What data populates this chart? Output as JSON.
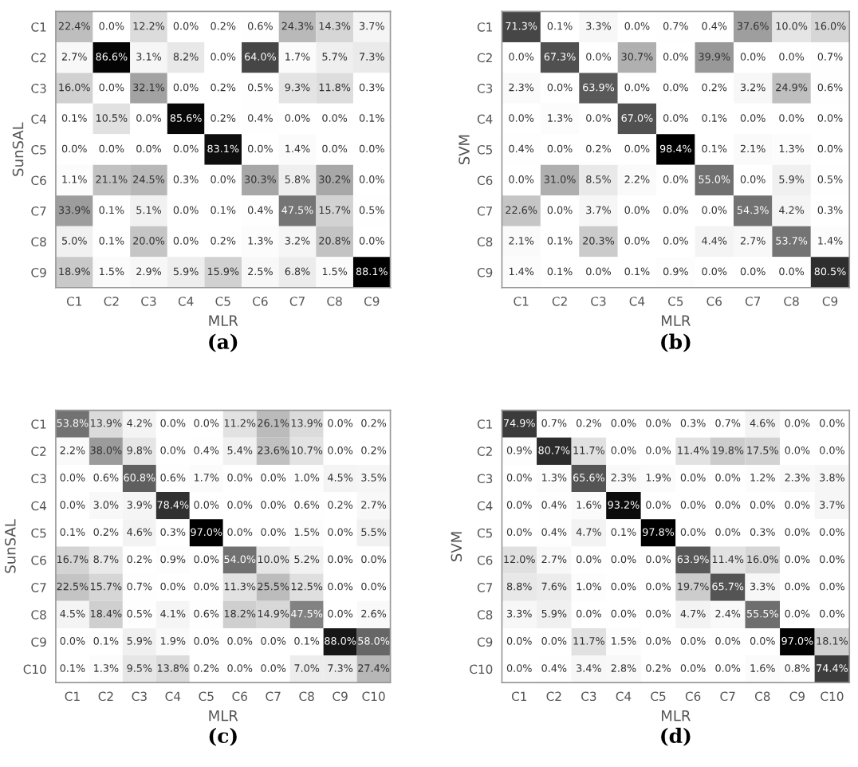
{
  "chart_data": [
    {
      "type": "heatmap",
      "title": "(a)",
      "xlabel": "MLR",
      "ylabel": "SunSAL",
      "categories": [
        "C1",
        "C2",
        "C3",
        "C4",
        "C5",
        "C6",
        "C7",
        "C8",
        "C9"
      ],
      "y_categories": [
        "C1",
        "C2",
        "C3",
        "C4",
        "C5",
        "C6",
        "C7",
        "C8",
        "C9"
      ],
      "cells": [
        [
          22.4,
          0.0,
          12.2,
          0.0,
          0.2,
          0.6,
          24.3,
          14.3,
          3.7
        ],
        [
          2.7,
          86.6,
          3.1,
          8.2,
          0.0,
          64.0,
          1.7,
          5.7,
          7.3
        ],
        [
          16.0,
          0.0,
          32.1,
          0.0,
          0.2,
          0.5,
          9.3,
          11.8,
          0.3
        ],
        [
          0.1,
          10.5,
          0.0,
          85.6,
          0.2,
          0.4,
          0.0,
          0.0,
          0.1
        ],
        [
          0.0,
          0.0,
          0.0,
          0.0,
          83.1,
          0.0,
          1.4,
          0.0,
          0.0
        ],
        [
          1.1,
          21.1,
          24.5,
          0.3,
          0.0,
          30.3,
          5.8,
          30.2,
          0.0
        ],
        [
          33.9,
          0.1,
          5.1,
          0.0,
          0.1,
          0.4,
          47.5,
          15.7,
          0.5
        ],
        [
          5.0,
          0.1,
          20.0,
          0.0,
          0.2,
          1.3,
          3.2,
          20.8,
          0.0
        ],
        [
          18.9,
          1.5,
          2.9,
          5.9,
          15.9,
          2.5,
          6.8,
          1.5,
          88.1
        ]
      ],
      "cell_labels": [
        [
          "22.4%",
          "0.0%",
          "12.2%",
          "0.0%",
          "0.2%",
          "0.6%",
          "24.3%",
          "14.3%",
          "3.7%"
        ],
        [
          "2.7%",
          "86.6%",
          "3.1%",
          "8.2%",
          "0.0%",
          "64.0%",
          "1.7%",
          "5.7%",
          "7.3%"
        ],
        [
          "16.0%",
          "0.0%",
          "32.1%",
          "0.0%",
          "0.2%",
          "0.5%",
          "9.3%",
          "11.8%",
          "0.3%"
        ],
        [
          "0.1%",
          "10.5%",
          "0.0%",
          "85.6%",
          "0.2%",
          "0.4%",
          "0.0%",
          "0.0%",
          "0.1%"
        ],
        [
          "0.0%",
          "0.0%",
          "0.0%",
          "0.0%",
          "83.1%",
          "0.0%",
          "1.4%",
          "0.0%",
          "0.0%"
        ],
        [
          "1.1%",
          "21.1%",
          "24.5%",
          "0.3%",
          "0.0%",
          "30.3%",
          "5.8%",
          "30.2%",
          "0.0%"
        ],
        [
          "33.9%",
          "0.1%",
          "5.1%",
          "0.0%",
          "0.1%",
          "0.4%",
          "47.5%",
          "15.7%",
          "0.5%"
        ],
        [
          "5.0%",
          "0.1%",
          "20.0%",
          "0.0%",
          "0.2%",
          "1.3%",
          "3.2%",
          "20.8%",
          "0.0%"
        ],
        [
          "18.9%",
          "1.5%",
          "2.9%",
          "5.9%",
          "15.9%",
          "2.5%",
          "6.8%",
          "1.5%",
          "88.1%"
        ]
      ]
    },
    {
      "type": "heatmap",
      "title": "(b)",
      "xlabel": "MLR",
      "ylabel": "SVM",
      "categories": [
        "C1",
        "C2",
        "C3",
        "C4",
        "C5",
        "C6",
        "C7",
        "C8",
        "C9"
      ],
      "y_categories": [
        "C1",
        "C2",
        "C3",
        "C4",
        "C5",
        "C6",
        "C7",
        "C8",
        "C9"
      ],
      "cells": [
        [
          71.3,
          0.1,
          3.3,
          0.0,
          0.7,
          0.4,
          37.6,
          10.0,
          16.0
        ],
        [
          0.0,
          67.3,
          0.0,
          30.7,
          0.0,
          39.9,
          0.0,
          0.0,
          0.7
        ],
        [
          2.3,
          0.0,
          63.9,
          0.0,
          0.0,
          0.2,
          3.2,
          24.9,
          0.6
        ],
        [
          0.0,
          1.3,
          0.0,
          67.0,
          0.0,
          0.1,
          0.0,
          0.0,
          0.0
        ],
        [
          0.4,
          0.0,
          0.2,
          0.0,
          98.4,
          0.1,
          2.1,
          1.3,
          0.0
        ],
        [
          0.0,
          31.0,
          8.5,
          2.2,
          0.0,
          55.0,
          0.0,
          5.9,
          0.5
        ],
        [
          22.6,
          0.0,
          3.7,
          0.0,
          0.0,
          0.0,
          54.3,
          4.2,
          0.3
        ],
        [
          2.1,
          0.1,
          20.3,
          0.0,
          0.0,
          4.4,
          2.7,
          53.7,
          1.4
        ],
        [
          1.4,
          0.1,
          0.0,
          0.1,
          0.9,
          0.0,
          0.0,
          0.0,
          80.5
        ]
      ],
      "cell_labels": [
        [
          "71.3%",
          "0.1%",
          "3.3%",
          "0.0%",
          "0.7%",
          "0.4%",
          "37.6%",
          "10.0%",
          "16.0%"
        ],
        [
          "0.0%",
          "67.3%",
          "0.0%",
          "30.7%",
          "0.0%",
          "39.9%",
          "0.0%",
          "0.0%",
          "0.7%"
        ],
        [
          "2.3%",
          "0.0%",
          "63.9%",
          "0.0%",
          "0.0%",
          "0.2%",
          "3.2%",
          "24.9%",
          "0.6%"
        ],
        [
          "0.0%",
          "1.3%",
          "0.0%",
          "67.0%",
          "0.0%",
          "0.1%",
          "0.0%",
          "0.0%",
          "0.0%"
        ],
        [
          "0.4%",
          "0.0%",
          "0.2%",
          "0.0%",
          "98.4%",
          "0.1%",
          "2.1%",
          "1.3%",
          "0.0%"
        ],
        [
          "0.0%",
          "31.0%",
          "8.5%",
          "2.2%",
          "0.0%",
          "55.0%",
          "0.0%",
          "5.9%",
          "0.5%"
        ],
        [
          "22.6%",
          "0.0%",
          "3.7%",
          "0.0%",
          "0.0%",
          "0.0%",
          "54.3%",
          "4.2%",
          "0.3%"
        ],
        [
          "2.1%",
          "0.1%",
          "20.3%",
          "0.0%",
          "0.0%",
          "4.4%",
          "2.7%",
          "53.7%",
          "1.4%"
        ],
        [
          "1.4%",
          "0.1%",
          "0.0%",
          "0.1%",
          "0.9%",
          "0.0%",
          "0.0%",
          "0.0%",
          "80.5%"
        ]
      ]
    },
    {
      "type": "heatmap",
      "title": "(c)",
      "xlabel": "MLR",
      "ylabel": "SunSAL",
      "categories": [
        "C1",
        "C2",
        "C3",
        "C4",
        "C5",
        "C6",
        "C7",
        "C8",
        "C9",
        "C10"
      ],
      "y_categories": [
        "C1",
        "C2",
        "C3",
        "C4",
        "C5",
        "C6",
        "C7",
        "C8",
        "C9",
        "C10"
      ],
      "cells": [
        [
          53.8,
          13.9,
          4.2,
          0.0,
          0.0,
          11.2,
          26.1,
          13.9,
          0.0,
          0.2
        ],
        [
          2.2,
          38.0,
          9.8,
          0.0,
          0.4,
          5.4,
          23.6,
          10.7,
          0.0,
          0.2
        ],
        [
          0.0,
          0.6,
          60.8,
          0.6,
          1.7,
          0.0,
          0.0,
          1.0,
          4.5,
          3.5
        ],
        [
          0.0,
          3.0,
          3.9,
          78.4,
          0.0,
          0.0,
          0.0,
          0.6,
          0.2,
          2.7
        ],
        [
          0.1,
          0.2,
          4.6,
          0.3,
          97.0,
          0.0,
          0.0,
          1.5,
          0.0,
          5.5
        ],
        [
          16.7,
          8.7,
          0.2,
          0.9,
          0.0,
          54.0,
          10.0,
          5.2,
          0.0,
          0.0
        ],
        [
          22.5,
          15.7,
          0.7,
          0.0,
          0.0,
          11.3,
          25.5,
          12.5,
          0.0,
          0.0
        ],
        [
          4.5,
          18.4,
          0.5,
          4.1,
          0.6,
          18.2,
          14.9,
          47.5,
          0.0,
          2.6
        ],
        [
          0.0,
          0.1,
          5.9,
          1.9,
          0.0,
          0.0,
          0.0,
          0.1,
          88.0,
          58.0
        ],
        [
          0.1,
          1.3,
          9.5,
          13.8,
          0.2,
          0.0,
          0.0,
          7.0,
          7.3,
          27.4
        ]
      ],
      "cell_labels": [
        [
          "53.8%",
          "13.9%",
          "4.2%",
          "0.0%",
          "0.0%",
          "11.2%",
          "26.1%",
          "13.9%",
          "0.0%",
          "0.2%"
        ],
        [
          "2.2%",
          "38.0%",
          "9.8%",
          "0.0%",
          "0.4%",
          "5.4%",
          "23.6%",
          "10.7%",
          "0.0%",
          "0.2%"
        ],
        [
          "0.0%",
          "0.6%",
          "60.8%",
          "0.6%",
          "1.7%",
          "0.0%",
          "0.0%",
          "1.0%",
          "4.5%",
          "3.5%"
        ],
        [
          "0.0%",
          "3.0%",
          "3.9%",
          "78.4%",
          "0.0%",
          "0.0%",
          "0.0%",
          "0.6%",
          "0.2%",
          "2.7%"
        ],
        [
          "0.1%",
          "0.2%",
          "4.6%",
          "0.3%",
          "97.0%",
          "0.0%",
          "0.0%",
          "1.5%",
          "0.0%",
          "5.5%"
        ],
        [
          "16.7%",
          "8.7%",
          "0.2%",
          "0.9%",
          "0.0%",
          "54.0%",
          "10.0%",
          "5.2%",
          "0.0%",
          "0.0%"
        ],
        [
          "22.5%",
          "15.7%",
          "0.7%",
          "0.0%",
          "0.0%",
          "11.3%",
          "25.5%",
          "12.5%",
          "0.0%",
          "0.0%"
        ],
        [
          "4.5%",
          "18.4%",
          "0.5%",
          "4.1%",
          "0.6%",
          "18.2%",
          "14.9%",
          "47.5%",
          "0.0%",
          "2.6%"
        ],
        [
          "0.0%",
          "0.1%",
          "5.9%",
          "1.9%",
          "0.0%",
          "0.0%",
          "0.0%",
          "0.1%",
          "88.0%",
          "58.0%"
        ],
        [
          "0.1%",
          "1.3%",
          "9.5%",
          "13.8%",
          "0.2%",
          "0.0%",
          "0.0%",
          "7.0%",
          "7.3%",
          "27.4%"
        ]
      ]
    },
    {
      "type": "heatmap",
      "title": "(d)",
      "xlabel": "MLR",
      "ylabel": "SVM",
      "categories": [
        "C1",
        "C2",
        "C3",
        "C4",
        "C5",
        "C6",
        "C7",
        "C8",
        "C9",
        "C10"
      ],
      "y_categories": [
        "C1",
        "C2",
        "C3",
        "C4",
        "C5",
        "C6",
        "C7",
        "C8",
        "C9",
        "C10"
      ],
      "cells": [
        [
          74.9,
          0.7,
          0.2,
          0.0,
          0.0,
          0.3,
          0.7,
          4.6,
          0.0,
          0.0
        ],
        [
          0.9,
          80.7,
          11.7,
          0.0,
          0.0,
          11.4,
          19.8,
          17.5,
          0.0,
          0.0
        ],
        [
          0.0,
          1.3,
          65.6,
          2.3,
          1.9,
          0.0,
          0.0,
          1.2,
          2.3,
          3.8
        ],
        [
          0.0,
          0.4,
          1.6,
          93.2,
          0.0,
          0.0,
          0.0,
          0.0,
          0.0,
          3.7
        ],
        [
          0.0,
          0.4,
          4.7,
          0.1,
          97.8,
          0.0,
          0.0,
          0.3,
          0.0,
          0.0
        ],
        [
          12.0,
          2.7,
          0.0,
          0.0,
          0.0,
          63.9,
          11.4,
          16.0,
          0.0,
          0.0
        ],
        [
          8.8,
          7.6,
          1.0,
          0.0,
          0.0,
          19.7,
          65.7,
          3.3,
          0.0,
          0.0
        ],
        [
          3.3,
          5.9,
          0.0,
          0.0,
          0.0,
          4.7,
          2.4,
          55.5,
          0.0,
          0.0
        ],
        [
          0.0,
          0.0,
          11.7,
          1.5,
          0.0,
          0.0,
          0.0,
          0.0,
          97.0,
          18.1
        ],
        [
          0.0,
          0.4,
          3.4,
          2.8,
          0.2,
          0.0,
          0.0,
          1.6,
          0.8,
          74.4
        ]
      ],
      "cell_labels": [
        [
          "74.9%",
          "0.7%",
          "0.2%",
          "0.0%",
          "0.0%",
          "0.3%",
          "0.7%",
          "4.6%",
          "0.0%",
          "0.0%"
        ],
        [
          "0.9%",
          "80.7%",
          "11.7%",
          "0.0%",
          "0.0%",
          "11.4%",
          "19.8%",
          "17.5%",
          "0.0%",
          "0.0%"
        ],
        [
          "0.0%",
          "1.3%",
          "65.6%",
          "2.3%",
          "1.9%",
          "0.0%",
          "0.0%",
          "1.2%",
          "2.3%",
          "3.8%"
        ],
        [
          "0.0%",
          "0.4%",
          "1.6%",
          "93.2%",
          "0.0%",
          "0.0%",
          "0.0%",
          "0.0%",
          "0.0%",
          "3.7%"
        ],
        [
          "0.0%",
          "0.4%",
          "4.7%",
          "0.1%",
          "97.8%",
          "0.0%",
          "0.0%",
          "0.3%",
          "0.0%",
          "0.0%"
        ],
        [
          "12.0%",
          "2.7%",
          "0.0%",
          "0.0%",
          "0.0%",
          "63.9%",
          "11.4%",
          "16.0%",
          "0.0%",
          "0.0%"
        ],
        [
          "8.8%",
          "7.6%",
          "1.0%",
          "0.0%",
          "0.0%",
          "19.7%",
          "65.7%",
          "3.3%",
          "0.0%",
          "0.0%"
        ],
        [
          "3.3%",
          "5.9%",
          "0.0%",
          "0.0%",
          "0.0%",
          "4.7%",
          "2.4%",
          "55.5%",
          "0.0%",
          "0.0%"
        ],
        [
          "0.0%",
          "0.0%",
          "11.7%",
          "1.5%",
          "0.0%",
          "0.0%",
          "0.0%",
          "0.0%",
          "97.0%",
          "18.1%"
        ],
        [
          "0.0%",
          "0.4%",
          "3.4%",
          "2.8%",
          "0.2%",
          "0.0%",
          "0.0%",
          "1.6%",
          "0.8%",
          "74.4%"
        ]
      ]
    }
  ]
}
